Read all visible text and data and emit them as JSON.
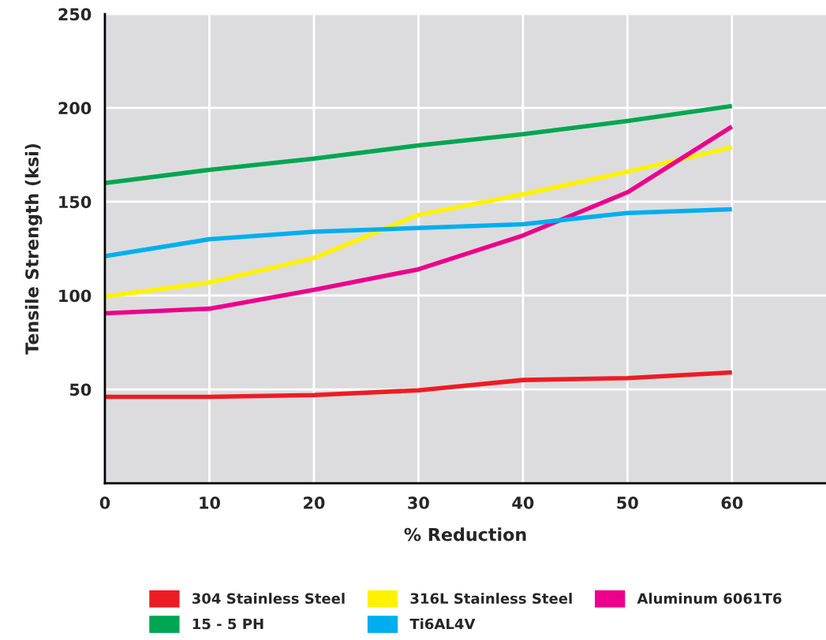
{
  "chart_data": {
    "type": "line",
    "xlabel": "% Reduction",
    "ylabel": "Tensile Strength (ksi)",
    "x": [
      0,
      10,
      20,
      30,
      40,
      50,
      60
    ],
    "series": [
      {
        "name": "304 Stainless Steel",
        "color": "#ed1c24",
        "values": [
          46,
          46,
          47,
          49.5,
          55,
          56,
          59
        ]
      },
      {
        "name": "316L Stainless Steel",
        "color": "#fff200",
        "values": [
          99.5,
          107,
          120,
          143,
          154,
          166,
          179
        ]
      },
      {
        "name": "Aluminum 6061T6",
        "color": "#ec008c",
        "values": [
          90.5,
          93,
          103,
          114,
          132,
          155,
          190
        ]
      },
      {
        "name": "15 - 5 PH",
        "color": "#00a651",
        "values": [
          160,
          167,
          173,
          180,
          186,
          193,
          201
        ]
      },
      {
        "name": "Ti6AL4V",
        "color": "#00aeef",
        "values": [
          121,
          130,
          134,
          136,
          138,
          144,
          146
        ]
      }
    ],
    "xlim": [
      0,
      69
    ],
    "ylim": [
      0,
      250
    ],
    "xticks": [
      0,
      10,
      20,
      30,
      40,
      50,
      60
    ],
    "yticks": [
      50,
      100,
      150,
      200,
      250
    ],
    "grid": true,
    "legend": "bottom",
    "marker": "none",
    "line_style": "solid"
  }
}
